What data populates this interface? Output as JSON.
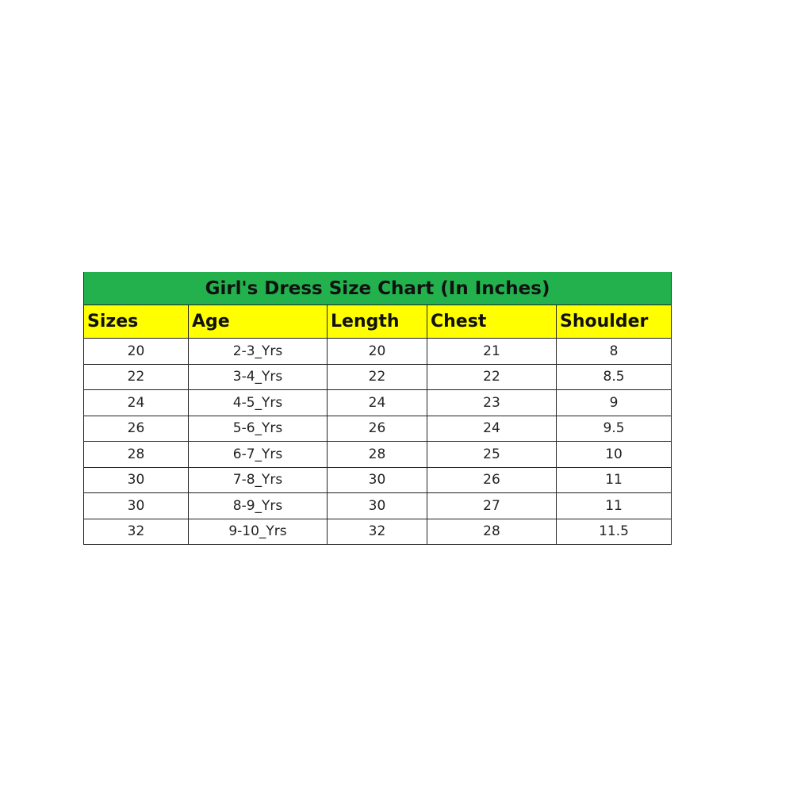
{
  "table": {
    "title": "Girl's Dress Size Chart (In Inches)",
    "colors": {
      "title_bg": "#22b14c",
      "header_bg": "#ffff00"
    },
    "columns": [
      "Sizes",
      "Age",
      "Length",
      "Chest",
      "Shoulder"
    ],
    "rows": [
      [
        "20",
        "2-3_Yrs",
        "20",
        "21",
        "8"
      ],
      [
        "22",
        "3-4_Yrs",
        "22",
        "22",
        "8.5"
      ],
      [
        "24",
        "4-5_Yrs",
        "24",
        "23",
        "9"
      ],
      [
        "26",
        "5-6_Yrs",
        "26",
        "24",
        "9.5"
      ],
      [
        "28",
        "6-7_Yrs",
        "28",
        "25",
        "10"
      ],
      [
        "30",
        "7-8_Yrs",
        "30",
        "26",
        "11"
      ],
      [
        "30",
        "8-9_Yrs",
        "30",
        "27",
        "11"
      ],
      [
        "32",
        "9-10_Yrs",
        "32",
        "28",
        "11.5"
      ]
    ]
  }
}
